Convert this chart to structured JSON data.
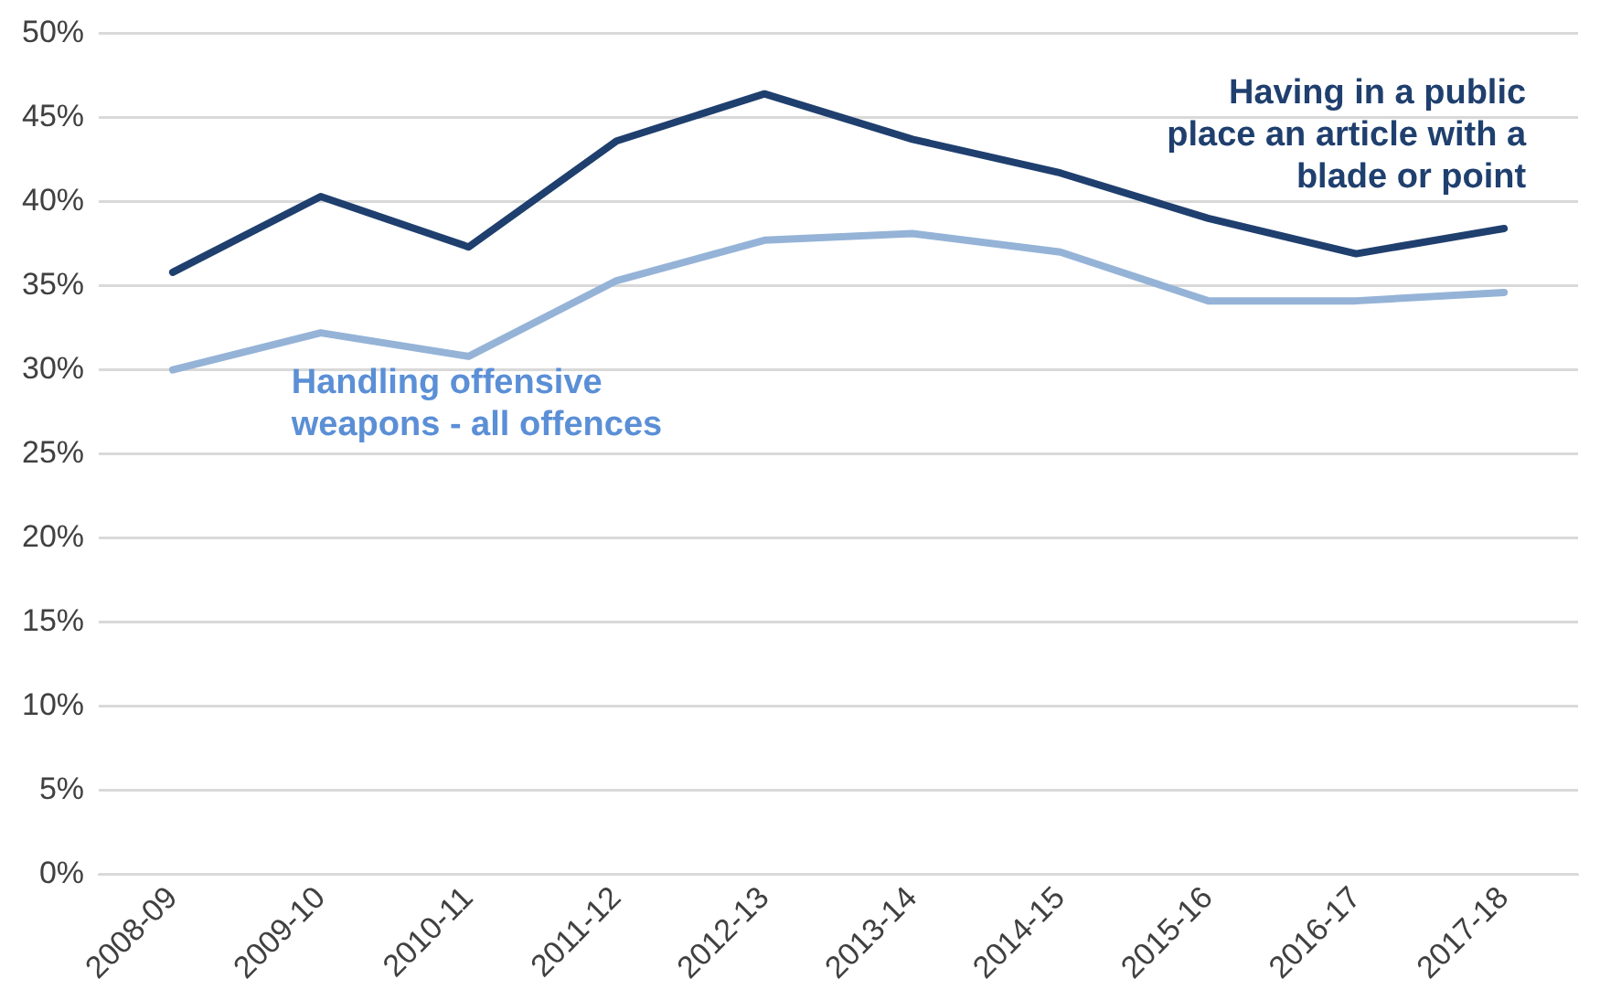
{
  "chart_data": {
    "type": "line",
    "categories": [
      "2008-09",
      "2009-10",
      "2010-11",
      "2011-12",
      "2012-13",
      "2013-14",
      "2014-15",
      "2015-16",
      "2016-17",
      "2017-18"
    ],
    "series": [
      {
        "name": "Having in a public place an article with a blade or point",
        "color": "#1f3f6e",
        "values": [
          35.8,
          40.3,
          37.3,
          43.6,
          46.4,
          43.7,
          41.7,
          39.0,
          36.9,
          38.4
        ]
      },
      {
        "name": "Handling offensive weapons - all offences",
        "color": "#95b3d7",
        "values": [
          30.0,
          32.2,
          30.8,
          35.3,
          37.7,
          38.1,
          37.0,
          34.1,
          34.1,
          34.6
        ]
      }
    ],
    "ylim": [
      0,
      50
    ],
    "yticks": [
      {
        "value": 0,
        "label": "0%"
      },
      {
        "value": 5,
        "label": "5%"
      },
      {
        "value": 10,
        "label": "10%"
      },
      {
        "value": 15,
        "label": "15%"
      },
      {
        "value": 20,
        "label": "20%"
      },
      {
        "value": 25,
        "label": "25%"
      },
      {
        "value": 30,
        "label": "30%"
      },
      {
        "value": 35,
        "label": "35%"
      },
      {
        "value": 40,
        "label": "40%"
      },
      {
        "value": 45,
        "label": "45%"
      },
      {
        "value": 50,
        "label": "50%"
      }
    ],
    "grid": "y",
    "legend": false,
    "marker": "none",
    "line_style": "solid"
  }
}
